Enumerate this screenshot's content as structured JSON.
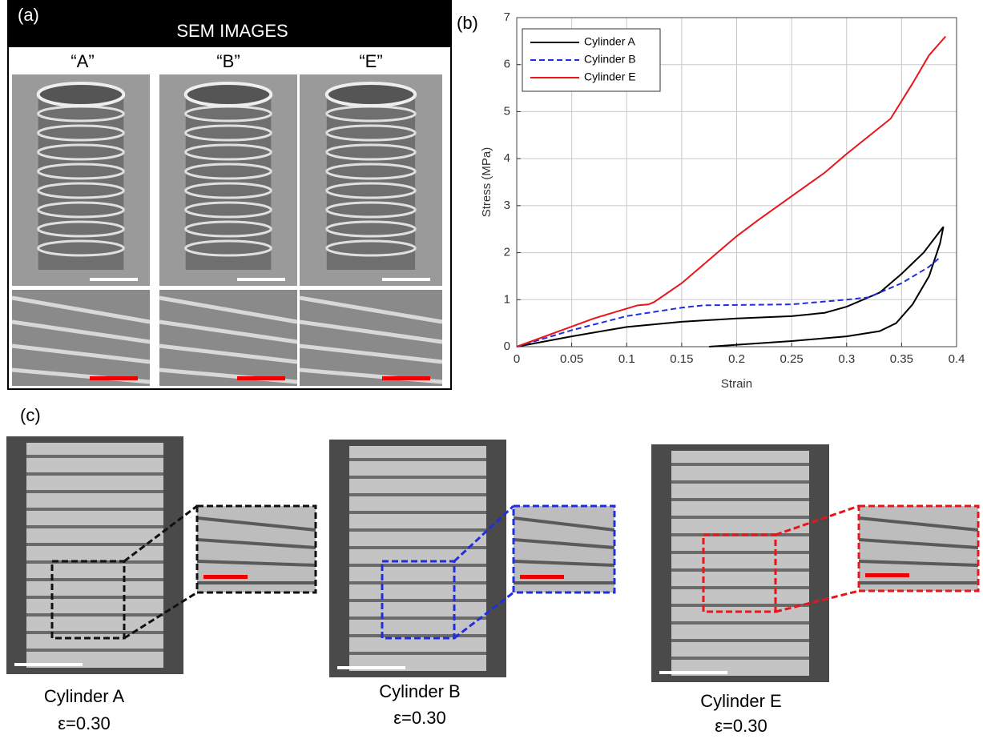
{
  "panel_a": {
    "label": "(a)",
    "header": "SEM IMAGES",
    "images": [
      "“A”",
      "“B”",
      "“E”"
    ]
  },
  "chart_data": {
    "type": "line",
    "panel_label": "(b)",
    "xlabel": "Strain",
    "ylabel": "Stress (MPa)",
    "xlim": [
      0,
      0.4
    ],
    "xticks": [
      0,
      0.05,
      0.1,
      0.15,
      0.2,
      0.25,
      0.3,
      0.35,
      0.4
    ],
    "ylim": [
      0,
      7
    ],
    "yticks": [
      0,
      1,
      2,
      3,
      4,
      5,
      6,
      7
    ],
    "grid": true,
    "legend": "upper-left",
    "series": [
      {
        "name": "Cylinder A",
        "color": "#000000",
        "line_style": "solid",
        "x": [
          0,
          0.05,
          0.1,
          0.15,
          0.2,
          0.25,
          0.28,
          0.3,
          0.33,
          0.35,
          0.37,
          0.388,
          0.385,
          0.375,
          0.36,
          0.345,
          0.33,
          0.3,
          0.25,
          0.2,
          0.175
        ],
        "values": [
          0,
          0.22,
          0.42,
          0.53,
          0.6,
          0.65,
          0.72,
          0.85,
          1.15,
          1.55,
          2.0,
          2.55,
          2.2,
          1.5,
          0.9,
          0.5,
          0.33,
          0.22,
          0.12,
          0.04,
          0
        ]
      },
      {
        "name": "Cylinder B",
        "color": "#1f2fe0",
        "line_style": "dashed",
        "x": [
          0,
          0.05,
          0.1,
          0.15,
          0.17,
          0.25,
          0.3,
          0.32,
          0.35,
          0.375,
          0.385
        ],
        "values": [
          0,
          0.35,
          0.65,
          0.83,
          0.88,
          0.9,
          1.0,
          1.05,
          1.35,
          1.7,
          1.9
        ]
      },
      {
        "name": "Cylinder E",
        "color": "#e8151b",
        "line_style": "solid",
        "x": [
          0,
          0.07,
          0.11,
          0.12,
          0.125,
          0.15,
          0.2,
          0.22,
          0.25,
          0.28,
          0.3,
          0.34,
          0.36,
          0.375,
          0.39
        ],
        "values": [
          0,
          0.6,
          0.88,
          0.9,
          0.95,
          1.35,
          2.35,
          2.7,
          3.2,
          3.7,
          4.1,
          4.85,
          5.6,
          6.2,
          6.6
        ]
      }
    ]
  },
  "panel_c": {
    "label": "(c)",
    "captions": [
      {
        "name": "Cylinder A",
        "strain": "ε=0.30"
      },
      {
        "name": "Cylinder B",
        "strain": "ε=0.30"
      },
      {
        "name": "Cylinder E",
        "strain": "ε=0.30"
      }
    ]
  }
}
